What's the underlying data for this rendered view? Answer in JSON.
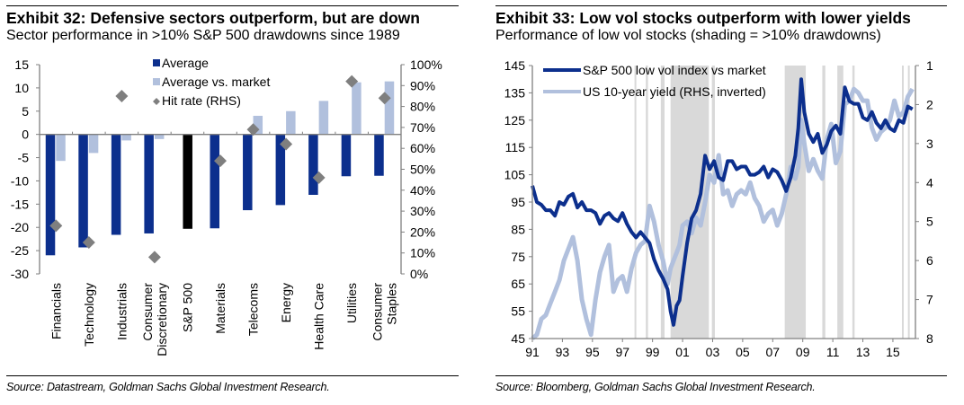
{
  "colors": {
    "average": "#0c2f8d",
    "average_vs_market": "#b1c0dd",
    "hit_rate": "#7f7f7f",
    "sp500_bar": "#000000",
    "low_vol_line": "#0c2f8d",
    "yield_line": "#b1c0dd",
    "shading": "#d9d9d9",
    "axis": "#808080"
  },
  "exhibit32": {
    "title": "Exhibit 32: Defensive sectors outperform, but are down",
    "subtitle": "Sector performance in >10% S&P 500 drawdowns since 1989",
    "source": "Source: Datastream, Goldman Sachs Global Investment Research."
  },
  "exhibit33": {
    "title": "Exhibit 33: Low vol stocks outperform with lower yields",
    "subtitle": "Performance of low vol stocks (shading = >10% drawdowns)",
    "source": "Source: Bloomberg, Goldman Sachs Global Investment Research."
  },
  "chart_data": [
    {
      "type": "bar",
      "title": "Exhibit 32: Defensive sectors outperform, but are down",
      "subtitle": "Sector performance in >10% S&P 500 drawdowns since 1989",
      "categories": [
        "Financials",
        "Technology",
        "Industrials",
        "Consumer Discretionary",
        "S&P 500",
        "Materials",
        "Telecoms",
        "Energy",
        "Health Care",
        "Utilities",
        "Consumer Staples"
      ],
      "category_lines": [
        [
          "Financials"
        ],
        [
          "Technology"
        ],
        [
          "Industrials"
        ],
        [
          "Consumer",
          "Discretionary"
        ],
        [
          "S&P 500"
        ],
        [
          "Materials"
        ],
        [
          "Telecoms"
        ],
        [
          "Energy"
        ],
        [
          "Health Care"
        ],
        [
          "Utilities"
        ],
        [
          "Consumer",
          "Staples"
        ]
      ],
      "series": [
        {
          "name": "Average",
          "axis": "left",
          "kind": "bar",
          "values": [
            -26.0,
            -24.3,
            -21.6,
            -21.3,
            -20.3,
            -20.2,
            -16.3,
            -15.2,
            -13.0,
            -9.0,
            -8.9
          ]
        },
        {
          "name": "Average vs. market",
          "axis": "left",
          "kind": "bar",
          "values": [
            -5.7,
            -4.0,
            -1.3,
            -1.0,
            null,
            null,
            4.0,
            5.0,
            7.2,
            11.2,
            11.4
          ]
        },
        {
          "name": "Hit rate (RHS)",
          "axis": "right",
          "kind": "marker",
          "values": [
            23,
            15,
            85,
            8,
            null,
            54,
            69,
            62,
            46,
            92,
            84
          ]
        }
      ],
      "ylim_left": [
        -30,
        15
      ],
      "yticks_left": [
        "15",
        "10",
        "5",
        "0",
        "-5",
        "-10",
        "-15",
        "-20",
        "-25",
        "-30"
      ],
      "ylim_right": [
        0,
        100
      ],
      "yticks_right": [
        "100%",
        "90%",
        "80%",
        "70%",
        "60%",
        "50%",
        "40%",
        "30%",
        "20%",
        "10%",
        "0%"
      ],
      "legend": [
        "Average",
        "Average vs. market",
        "Hit rate (RHS)"
      ],
      "legend_position": "top-center",
      "grid": false
    },
    {
      "type": "line",
      "title": "Exhibit 33: Low vol stocks outperform with lower yields",
      "subtitle": "Performance of low vol stocks (shading = >10% drawdowns)",
      "xlim": [
        1991,
        2016.5
      ],
      "xticks": [
        "91",
        "93",
        "95",
        "97",
        "99",
        "01",
        "03",
        "05",
        "07",
        "09",
        "11",
        "13",
        "15"
      ],
      "ylim_left": [
        45,
        145
      ],
      "yticks_left": [
        "145",
        "135",
        "125",
        "115",
        "105",
        "95",
        "85",
        "75",
        "65",
        "55",
        "45"
      ],
      "ylim_right": [
        8,
        1
      ],
      "yticks_right": [
        "1",
        "2",
        "3",
        "4",
        "5",
        "6",
        "7",
        "8"
      ],
      "right_axis_inverted": true,
      "legend": [
        "S&P 500 low vol index vs market",
        "US 10-year yield (RHS, inverted)"
      ],
      "legend_position": "top-left",
      "grid": false,
      "shaded_periods": [
        [
          1997.8,
          1997.9
        ],
        [
          1998.55,
          1998.7
        ],
        [
          1999.55,
          1999.8
        ],
        [
          2000.2,
          2002.75
        ],
        [
          2002.95,
          2003.15
        ],
        [
          2007.8,
          2009.2
        ],
        [
          2010.3,
          2010.5
        ],
        [
          2011.3,
          2011.7
        ],
        [
          2012.3,
          2012.45
        ],
        [
          2015.6,
          2015.7
        ],
        [
          2016.0,
          2016.1
        ]
      ],
      "series": [
        {
          "name": "S&P 500 low vol index vs market",
          "axis": "left",
          "x": [
            1991.0,
            1991.3,
            1991.6,
            1991.9,
            1992.2,
            1992.5,
            1992.8,
            1993.1,
            1993.4,
            1993.7,
            1994.0,
            1994.3,
            1994.6,
            1994.9,
            1995.2,
            1995.5,
            1995.8,
            1996.1,
            1996.4,
            1996.7,
            1997.0,
            1997.3,
            1997.6,
            1997.9,
            1998.2,
            1998.5,
            1998.8,
            1999.1,
            1999.4,
            1999.7,
            2000.0,
            2000.2,
            2000.4,
            2000.6,
            2000.8,
            2001.0,
            2001.3,
            2001.6,
            2001.9,
            2002.2,
            2002.5,
            2002.8,
            2003.1,
            2003.4,
            2003.7,
            2004.0,
            2004.3,
            2004.6,
            2004.9,
            2005.2,
            2005.5,
            2005.8,
            2006.1,
            2006.4,
            2006.7,
            2007.0,
            2007.3,
            2007.6,
            2007.9,
            2008.2,
            2008.5,
            2008.7,
            2008.9,
            2009.1,
            2009.4,
            2009.7,
            2010.0,
            2010.3,
            2010.6,
            2010.9,
            2011.2,
            2011.5,
            2011.8,
            2012.1,
            2012.4,
            2012.7,
            2013.0,
            2013.3,
            2013.6,
            2013.9,
            2014.2,
            2014.5,
            2014.8,
            2015.1,
            2015.4,
            2015.7,
            2016.0,
            2016.3
          ],
          "y": [
            101,
            95,
            94,
            92,
            92,
            90,
            95,
            94,
            97,
            98,
            93,
            95,
            92,
            92,
            91,
            87,
            90,
            91,
            89,
            88,
            91,
            87,
            84,
            82,
            84,
            82,
            80,
            74,
            70,
            67,
            63,
            55,
            50,
            57,
            59,
            68,
            80,
            89,
            92,
            98,
            112,
            107,
            110,
            104,
            103,
            110,
            110,
            107,
            108,
            108,
            105,
            105,
            106,
            108,
            104,
            107,
            106,
            103,
            99,
            104,
            112,
            122,
            140,
            128,
            120,
            117,
            120,
            113,
            116,
            121,
            123,
            120,
            137,
            132,
            131,
            131,
            126,
            125,
            128,
            124,
            122,
            125,
            122,
            121,
            125,
            124,
            130,
            129
          ]
        },
        {
          "name": "US 10-year yield (RHS, inverted)",
          "axis": "right",
          "x": [
            1991.0,
            1991.3,
            1991.6,
            1991.9,
            1992.2,
            1992.5,
            1992.8,
            1993.1,
            1993.4,
            1993.7,
            1994.0,
            1994.3,
            1994.6,
            1994.9,
            1995.2,
            1995.5,
            1995.8,
            1996.1,
            1996.4,
            1996.7,
            1997.0,
            1997.3,
            1997.6,
            1997.9,
            1998.2,
            1998.5,
            1998.8,
            1999.1,
            1999.4,
            1999.7,
            2000.0,
            2000.2,
            2000.4,
            2000.6,
            2000.8,
            2001.0,
            2001.3,
            2001.6,
            2001.9,
            2002.2,
            2002.5,
            2002.8,
            2003.1,
            2003.4,
            2003.7,
            2004.0,
            2004.3,
            2004.6,
            2004.9,
            2005.2,
            2005.5,
            2005.8,
            2006.1,
            2006.4,
            2006.7,
            2007.0,
            2007.3,
            2007.6,
            2007.9,
            2008.2,
            2008.5,
            2008.7,
            2008.9,
            2009.1,
            2009.4,
            2009.7,
            2010.0,
            2010.3,
            2010.6,
            2010.9,
            2011.2,
            2011.5,
            2011.8,
            2012.1,
            2012.4,
            2012.7,
            2013.0,
            2013.3,
            2013.6,
            2013.9,
            2014.2,
            2014.5,
            2014.8,
            2015.1,
            2015.4,
            2015.7,
            2016.0,
            2016.3
          ],
          "y": [
            8.0,
            7.9,
            7.5,
            7.4,
            7.1,
            6.8,
            6.5,
            6.0,
            5.7,
            5.4,
            6.0,
            7.0,
            7.5,
            7.9,
            7.0,
            6.3,
            5.9,
            5.6,
            6.8,
            6.5,
            6.4,
            6.8,
            6.2,
            5.8,
            5.6,
            5.5,
            4.6,
            5.0,
            5.6,
            6.0,
            6.6,
            6.2,
            6.0,
            5.8,
            5.6,
            5.1,
            5.0,
            5.3,
            4.9,
            5.1,
            4.5,
            3.8,
            4.0,
            3.3,
            4.3,
            4.2,
            4.6,
            4.3,
            4.2,
            4.3,
            4.0,
            4.4,
            4.6,
            5.0,
            4.8,
            4.7,
            5.1,
            4.8,
            4.3,
            3.6,
            3.9,
            3.6,
            2.4,
            3.0,
            3.7,
            3.4,
            3.7,
            3.9,
            2.9,
            2.5,
            3.5,
            3.2,
            2.0,
            1.9,
            1.6,
            1.7,
            1.9,
            1.9,
            2.6,
            2.9,
            2.7,
            2.6,
            2.4,
            1.9,
            2.3,
            2.2,
            1.8,
            1.6
          ]
        }
      ]
    }
  ]
}
